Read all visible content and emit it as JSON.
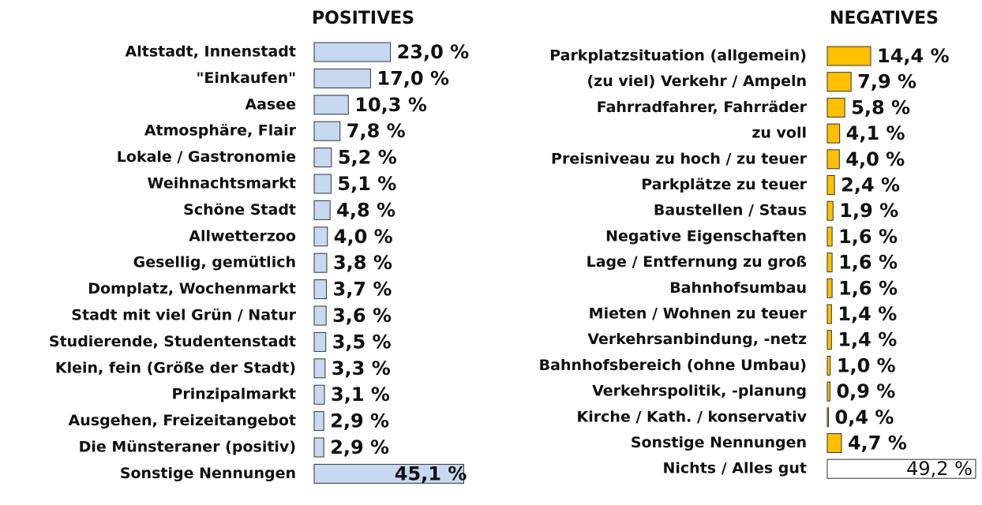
{
  "chart_data": [
    {
      "type": "bar",
      "orientation": "horizontal",
      "title": "POSITIVES",
      "color": "#c6d9f1",
      "xlim": [
        0,
        50
      ],
      "categories": [
        "Altstadt, Innenstadt",
        "\"Einkaufen\"",
        "Aasee",
        "Atmosphäre, Flair",
        "Lokale / Gastronomie",
        "Weihnachtsmarkt",
        "Schöne Stadt",
        "Allwetterzoo",
        "Gesellig, gemütlich",
        "Domplatz, Wochenmarkt",
        "Stadt mit viel Grün / Natur",
        "Studierende, Studentenstadt",
        "Klein, fein (Größe der Stadt)",
        "Prinzipalmarkt",
        "Ausgehen, Freizeitangebot",
        "Die Münsteraner (positiv)",
        "Sonstige Nennungen"
      ],
      "values": [
        23.0,
        17.0,
        10.3,
        7.8,
        5.2,
        5.1,
        4.8,
        4.0,
        3.8,
        3.7,
        3.6,
        3.5,
        3.3,
        3.1,
        2.9,
        2.9,
        45.1
      ],
      "value_labels": [
        "23,0 %",
        "17,0 %",
        "10,3 %",
        "7,8 %",
        "5,2 %",
        "5,1 %",
        "4,8 %",
        "4,0 %",
        "3,8 %",
        "3,7 %",
        "3,6 %",
        "3,5 %",
        "3,3 %",
        "3,1 %",
        "2,9 %",
        "2,9 %",
        "45,1 %"
      ]
    },
    {
      "type": "bar",
      "orientation": "horizontal",
      "title": "NEGATIVES",
      "xlim": [
        0,
        50
      ],
      "categories": [
        "Parkplatzsituation (allgemein)",
        "(zu viel) Verkehr / Ampeln",
        "Fahrradfahrer, Fahrräder",
        "zu voll",
        "Preisniveau zu hoch / zu teuer",
        "Parkplätze zu teuer",
        "Baustellen / Staus",
        "Negative Eigenschaften",
        "Lage / Entfernung zu groß",
        "Bahnhofsumbau",
        "Mieten / Wohnen zu teuer",
        "Verkehrsanbindung, -netz",
        "Bahnhofsbereich (ohne Umbau)",
        "Verkehrspolitik, -planung",
        "Kirche / Kath. / konservativ",
        "Sonstige Nennungen",
        "Nichts / Alles gut"
      ],
      "values": [
        14.4,
        7.9,
        5.8,
        4.1,
        4.0,
        2.4,
        1.9,
        1.6,
        1.6,
        1.6,
        1.4,
        1.4,
        1.0,
        0.9,
        0.4,
        4.7,
        49.2
      ],
      "value_labels": [
        "14,4 %",
        "7,9 %",
        "5,8 %",
        "4,1 %",
        "4,0 %",
        "2,4 %",
        "1,9 %",
        "1,6 %",
        "1,6 %",
        "1,6 %",
        "1,4 %",
        "1,4 %",
        "1,0 %",
        "0,9 %",
        "0,4 %",
        "4,7 %",
        "49,2 %"
      ],
      "colors": [
        "#ffc000",
        "#ffc000",
        "#ffc000",
        "#ffc000",
        "#ffc000",
        "#ffc000",
        "#ffc000",
        "#ffc000",
        "#ffc000",
        "#ffc000",
        "#ffc000",
        "#ffc000",
        "#ffc000",
        "#ffc000",
        "#ffc000",
        "#ffc000",
        "#ffffff"
      ]
    }
  ]
}
